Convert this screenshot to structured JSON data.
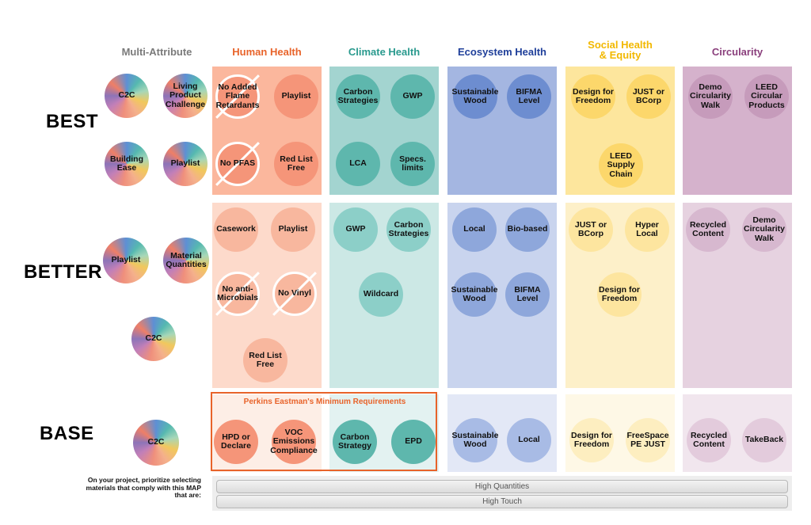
{
  "columns": {
    "multi": "Multi-Attribute",
    "human": "Human Health",
    "climate": "Climate Health",
    "ecosystem": "Ecosystem Health",
    "social": "Social Health\n& Equity",
    "circularity": "Circularity"
  },
  "rows": {
    "best": "BEST",
    "better": "BETTER",
    "base": "BASE"
  },
  "colors": {
    "human_best": "#fbb79d",
    "human_better": "#fddacb",
    "human_base": "#fdeee6",
    "human_circle": "#f59579",
    "climate_best": "#a3d4d0",
    "climate_better": "#cce8e5",
    "climate_base": "#e3f2f1",
    "climate_circle_dark": "#5eb7ad",
    "climate_circle_light": "#8ccfc8",
    "eco_best": "#a4b6e1",
    "eco_better": "#c9d4ee",
    "eco_base": "#e3e8f6",
    "eco_circle_dark": "#6d8dd0",
    "eco_circle_light": "#a8bbe5",
    "social_best": "#fde69d",
    "social_better": "#fdf0c9",
    "social_base": "#fef8e6",
    "social_circle": "#fcd76b",
    "social_circle_light": "#fde59f",
    "circ_best": "#d5b2cc",
    "circ_better": "#e6d2e0",
    "circ_base": "#f1e6ee",
    "circ_circle": "#c69bbb",
    "circ_circle_light": "#dcc2d5",
    "minimum_border": "#e8632a"
  },
  "multi": {
    "best": [
      "C2C",
      "Living Product Challenge",
      "Building Ease",
      "Playlist"
    ],
    "better": [
      "Playlist",
      "Material Quantities",
      "C2C"
    ],
    "base": [
      "C2C"
    ]
  },
  "human": {
    "best": [
      "No Added Flame Retardants",
      "Playlist",
      "No PFAS",
      "Red List Free"
    ],
    "better": [
      "Casework",
      "Playlist",
      "No anti-Microbials",
      "No Vinyl",
      "Red List Free"
    ],
    "base": [
      "HPD or Declare",
      "VOC Emissions Compliance"
    ]
  },
  "climate": {
    "best": [
      "Carbon Strategies",
      "GWP",
      "LCA",
      "Specs. limits"
    ],
    "better": [
      "GWP",
      "Carbon Strategies",
      "Wildcard"
    ],
    "base": [
      "Carbon Strategy",
      "EPD"
    ]
  },
  "ecosystem": {
    "best": [
      "Sustainable Wood",
      "BIFMA Level"
    ],
    "better": [
      "Local",
      "Bio-based",
      "Sustainable Wood",
      "BIFMA Level"
    ],
    "base": [
      "Sustainable Wood",
      "Local"
    ]
  },
  "social": {
    "best": [
      "Design for Freedom",
      "JUST or BCorp",
      "LEED Supply Chain"
    ],
    "better": [
      "JUST or BCorp",
      "Hyper Local",
      "Design for Freedom"
    ],
    "base": [
      "Design for Freedom",
      "FreeSpace PE JUST"
    ]
  },
  "circularity": {
    "best": [
      "Demo Circularity Walk",
      "LEED Circular Products"
    ],
    "better": [
      "Recycled Content",
      "Demo Circularity Walk"
    ],
    "base": [
      "Recycled Content",
      "TakeBack"
    ]
  },
  "minimum_requirements": "Perkins Eastman's Minimum Requirements",
  "footer": {
    "instruction": "On your project, prioritize selecting materials that comply with this MAP that are:",
    "bars": [
      "High Quantities",
      "High Touch"
    ]
  }
}
